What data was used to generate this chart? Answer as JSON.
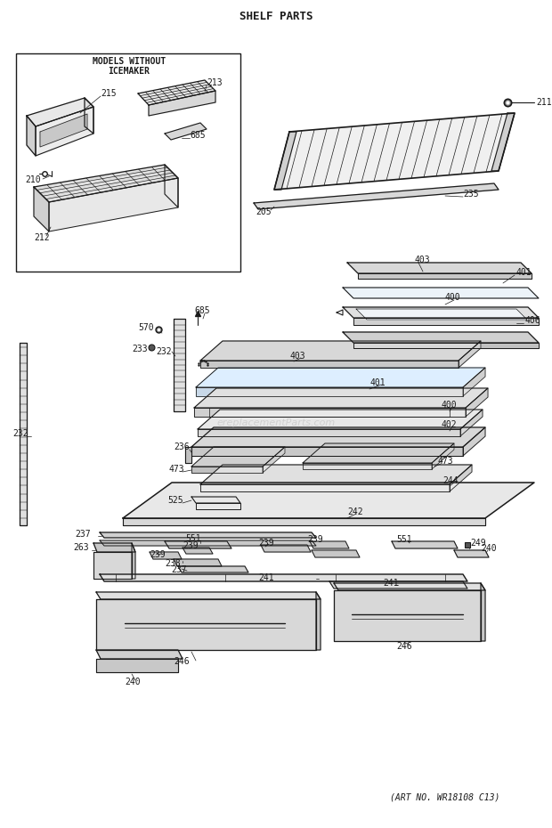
{
  "title": "SHELF PARTS",
  "bg": "#ffffff",
  "lc": "#1a1a1a",
  "tc": "#1a1a1a",
  "watermark": "ereplacementParts.com",
  "art_no": "(ART NO. WR18108 C13)",
  "figsize": [
    6.2,
    9.3
  ],
  "dpi": 100
}
